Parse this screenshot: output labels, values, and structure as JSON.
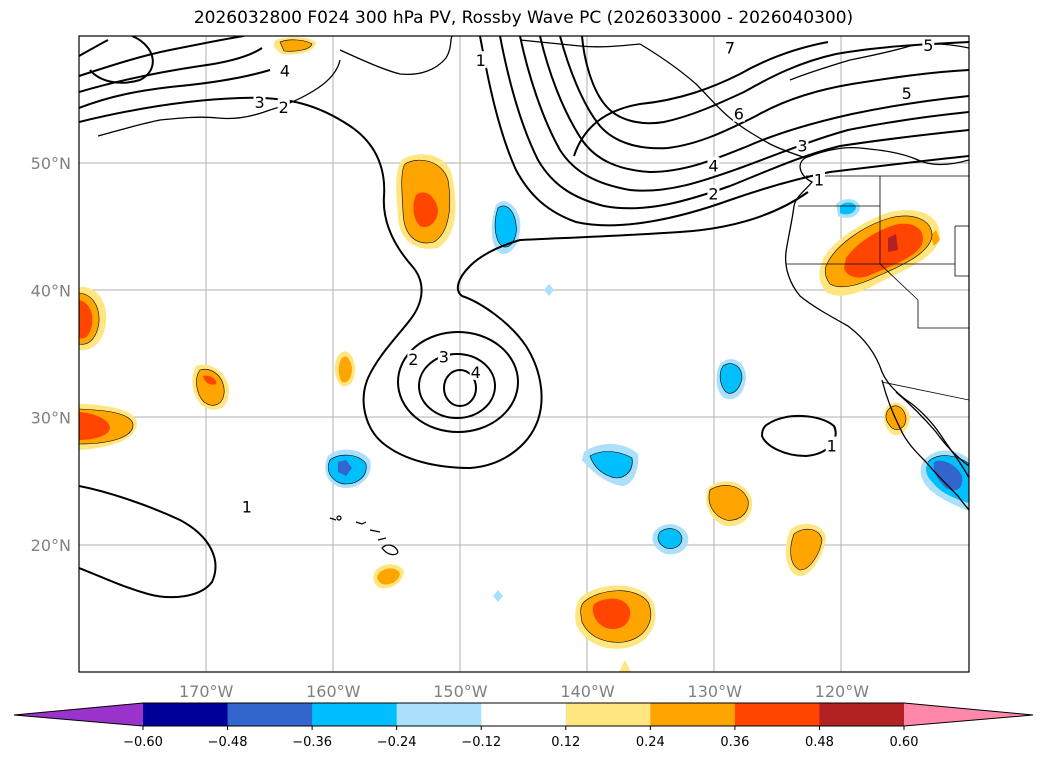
{
  "title": "2026032800 F024 300 hPa PV, Rossby Wave PC (2026033000 - 2026040300)",
  "lat_labels": [
    {
      "lat": 50,
      "text": "50°N"
    },
    {
      "lat": 40,
      "text": "40°N"
    },
    {
      "lat": 30,
      "text": "30°N"
    },
    {
      "lat": 20,
      "text": "20°N"
    }
  ],
  "lon_labels": [
    {
      "lon": -170,
      "text": "170°W"
    },
    {
      "lon": -160,
      "text": "160°W"
    },
    {
      "lon": -150,
      "text": "150°W"
    },
    {
      "lon": -140,
      "text": "140°W"
    },
    {
      "lon": -130,
      "text": "130°W"
    },
    {
      "lon": -120,
      "text": "120°W"
    }
  ],
  "colorbar": {
    "ticks": [
      "−0.60",
      "−0.48",
      "−0.36",
      "−0.24",
      "−0.12",
      "0.12",
      "0.24",
      "0.36",
      "0.48",
      "0.60"
    ],
    "colors": {
      "under": "#9933cc",
      "bins": [
        "#000099",
        "#3366cc",
        "#00bfff",
        "#aae0fa",
        "#ffffff",
        "#ffe680",
        "#ffa500",
        "#ff4500",
        "#b22222"
      ],
      "over": "#ff88aa"
    }
  },
  "contour_labels": [
    {
      "text": "1",
      "lon": -148.4,
      "lat": 58.1
    },
    {
      "text": "2",
      "lon": -163.9,
      "lat": 54.4
    },
    {
      "text": "3",
      "lon": -165.8,
      "lat": 54.8
    },
    {
      "text": "4",
      "lon": -163.8,
      "lat": 57.3
    },
    {
      "text": "7",
      "lon": -128.8,
      "lat": 59.1
    },
    {
      "text": "5",
      "lon": -113.2,
      "lat": 59.3
    },
    {
      "text": "5",
      "lon": -114.9,
      "lat": 55.5
    },
    {
      "text": "6",
      "lon": -128.1,
      "lat": 53.9
    },
    {
      "text": "3",
      "lon": -123.1,
      "lat": 51.4
    },
    {
      "text": "4",
      "lon": -130.1,
      "lat": 49.8
    },
    {
      "text": "1",
      "lon": -121.8,
      "lat": 48.7
    },
    {
      "text": "2",
      "lon": -130.1,
      "lat": 47.6
    },
    {
      "text": "2",
      "lon": -153.7,
      "lat": 34.6
    },
    {
      "text": "3",
      "lon": -151.3,
      "lat": 34.8
    },
    {
      "text": "4",
      "lon": -148.8,
      "lat": 33.6
    },
    {
      "text": "1",
      "lon": -120.8,
      "lat": 27.8
    },
    {
      "text": "1",
      "lon": -166.8,
      "lat": 23.0
    }
  ]
}
